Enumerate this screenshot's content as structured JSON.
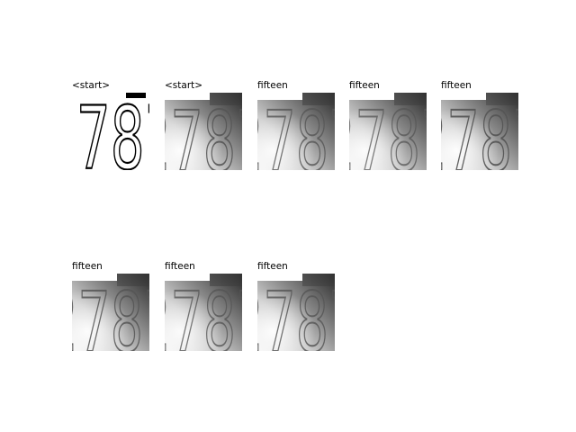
{
  "figure": {
    "panels": [
      {
        "title": "<start>",
        "style": "bw"
      },
      {
        "title": "<start>",
        "style": "gray",
        "variant": 0
      },
      {
        "title": "fifteen",
        "style": "gray",
        "variant": 1
      },
      {
        "title": "fifteen",
        "style": "gray",
        "variant": 2
      },
      {
        "title": "fifteen",
        "style": "gray",
        "variant": 3
      },
      {
        "title": "fifteen",
        "style": "gray",
        "variant": 4
      },
      {
        "title": "fifteen",
        "style": "gray",
        "variant": 5
      },
      {
        "title": "fifteen",
        "style": "gray",
        "variant": 6
      }
    ]
  },
  "colors": {
    "background": "#ffffff",
    "ink": "#000000"
  }
}
